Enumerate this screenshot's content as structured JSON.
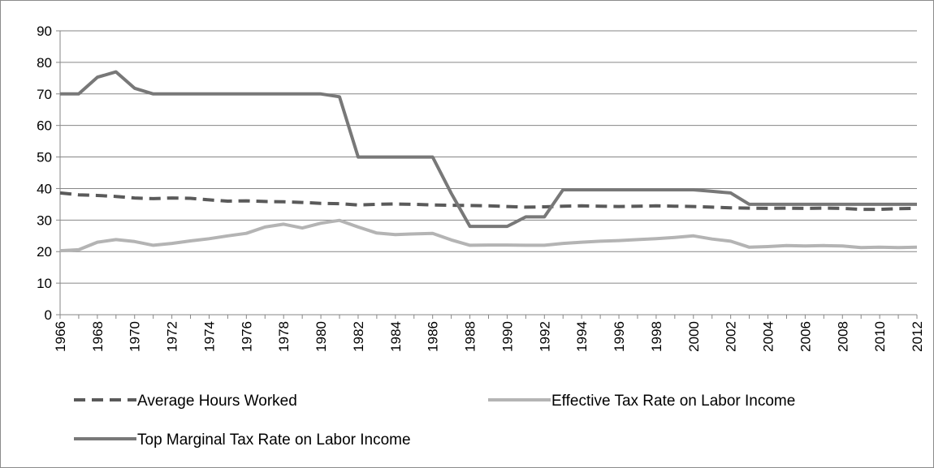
{
  "chart_data": {
    "type": "line",
    "title": "",
    "xlabel": "",
    "ylabel": "",
    "ylim": [
      0,
      90
    ],
    "yticks": [
      0,
      10,
      20,
      30,
      40,
      50,
      60,
      70,
      80,
      90
    ],
    "xlim": [
      1966,
      2012
    ],
    "xtick_labels": [
      "1966",
      "1968",
      "1970",
      "1972",
      "1974",
      "1976",
      "1978",
      "1980",
      "1982",
      "1984",
      "1986",
      "1988",
      "1990",
      "1992",
      "1994",
      "1996",
      "1998",
      "2000",
      "2002",
      "2004",
      "2006",
      "2008",
      "2010",
      "2012"
    ],
    "grid": "horizontal",
    "legend_position": "bottom",
    "x": [
      1966,
      1967,
      1968,
      1969,
      1970,
      1971,
      1972,
      1973,
      1974,
      1975,
      1976,
      1977,
      1978,
      1979,
      1980,
      1981,
      1982,
      1983,
      1984,
      1985,
      1986,
      1987,
      1988,
      1989,
      1990,
      1991,
      1992,
      1993,
      1994,
      1995,
      1996,
      1997,
      1998,
      1999,
      2000,
      2001,
      2002,
      2003,
      2004,
      2005,
      2006,
      2007,
      2008,
      2009,
      2010,
      2011,
      2012
    ],
    "series": [
      {
        "name": "Average Hours Worked",
        "color": "#5a5a5a",
        "style": "dashed",
        "values": [
          38.6,
          38.0,
          37.8,
          37.5,
          37.0,
          36.8,
          37.0,
          36.9,
          36.4,
          36.0,
          36.1,
          35.9,
          35.8,
          35.6,
          35.3,
          35.2,
          34.8,
          35.0,
          35.1,
          35.0,
          34.8,
          34.7,
          34.6,
          34.5,
          34.3,
          34.1,
          34.2,
          34.4,
          34.5,
          34.4,
          34.3,
          34.4,
          34.5,
          34.4,
          34.3,
          34.1,
          33.9,
          33.8,
          33.7,
          33.8,
          33.7,
          33.8,
          33.7,
          33.4,
          33.4,
          33.6,
          33.7
        ]
      },
      {
        "name": "Effective Tax Rate on Labor Income",
        "color": "#b4b4b4",
        "style": "solid",
        "values": [
          20.3,
          20.6,
          23.0,
          23.8,
          23.2,
          22.0,
          22.6,
          23.4,
          24.1,
          25.0,
          25.8,
          27.8,
          28.7,
          27.5,
          29.0,
          29.9,
          27.8,
          25.9,
          25.4,
          25.6,
          25.8,
          23.7,
          22.0,
          22.1,
          22.1,
          22.0,
          22.0,
          22.6,
          23.0,
          23.3,
          23.5,
          23.8,
          24.1,
          24.5,
          25.0,
          24.0,
          23.3,
          21.4,
          21.6,
          21.9,
          21.8,
          21.9,
          21.8,
          21.3,
          21.4,
          21.3,
          21.4
        ]
      },
      {
        "name": "Top Marginal Tax Rate on Labor Income",
        "color": "#787878",
        "style": "solid",
        "values": [
          70,
          70,
          75.3,
          77,
          71.8,
          70,
          70,
          70,
          70,
          70,
          70,
          70,
          70,
          70,
          70,
          69.1,
          50,
          50,
          50,
          50,
          50,
          38.5,
          28,
          28,
          28,
          31,
          31,
          39.6,
          39.6,
          39.6,
          39.6,
          39.6,
          39.6,
          39.6,
          39.6,
          39.1,
          38.6,
          35,
          35,
          35,
          35,
          35,
          35,
          35,
          35,
          35,
          35
        ]
      }
    ]
  }
}
